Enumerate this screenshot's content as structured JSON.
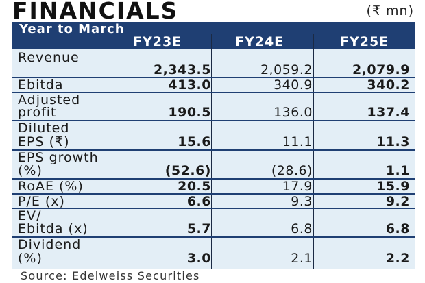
{
  "title": "FINANCIALS",
  "units": "(₹ mn)",
  "header": {
    "year_label": "Year to March",
    "columns": [
      "FY23E",
      "FY24E",
      "FY25E"
    ]
  },
  "rows": [
    {
      "label1": "Revenue",
      "label2": "",
      "values": [
        "2,343.5",
        "2,059.2",
        "2,079.9"
      ]
    },
    {
      "label1": "Ebitda",
      "label2": "",
      "values": [
        "413.0",
        "340.9",
        "340.2"
      ]
    },
    {
      "label1": "Adjusted",
      "label2": "profit",
      "values": [
        "190.5",
        "136.0",
        "137.4"
      ]
    },
    {
      "label1": "Diluted",
      "label2": "EPS (₹)",
      "values": [
        "15.6",
        "11.1",
        "11.3"
      ]
    },
    {
      "label1": "EPS growth",
      "label2": "(%)",
      "values": [
        "(52.6)",
        "(28.6)",
        "1.1"
      ]
    },
    {
      "label1": "RoAE (%)",
      "label2": "",
      "values": [
        "20.5",
        "17.9",
        "15.9"
      ]
    },
    {
      "label1": "P/E (x)",
      "label2": "",
      "values": [
        "6.6",
        "9.3",
        "9.2"
      ]
    },
    {
      "label1": "EV/",
      "label2": "Ebitda (x)",
      "values": [
        "5.7",
        "6.8",
        "6.8"
      ]
    },
    {
      "label1": "Dividend",
      "label2": "(%)",
      "values": [
        "3.0",
        "2.1",
        "2.2"
      ]
    }
  ],
  "source": "Source: Edelweiss Securities"
}
